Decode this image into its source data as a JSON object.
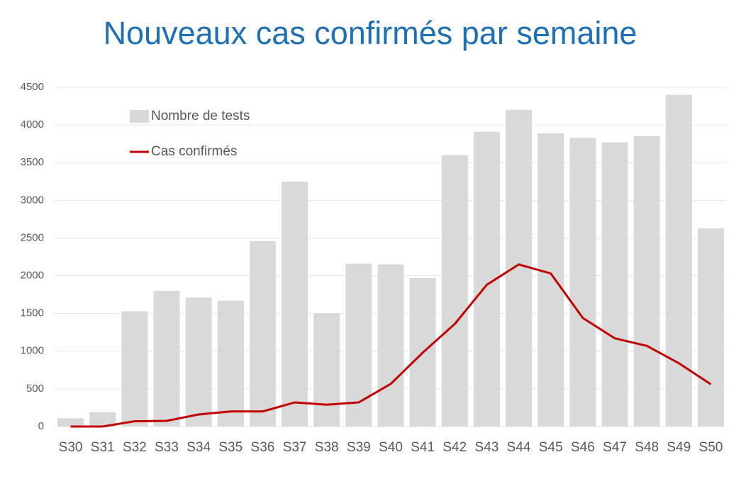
{
  "chart_data": {
    "type": "bar_line",
    "title": "Nouveaux cas confirmés par semaine",
    "categories": [
      "S30",
      "S31",
      "S32",
      "S33",
      "S34",
      "S35",
      "S36",
      "S37",
      "S38",
      "S39",
      "S40",
      "S41",
      "S42",
      "S43",
      "S44",
      "S45",
      "S46",
      "S47",
      "S48",
      "S49",
      "S50"
    ],
    "series": [
      {
        "name": "Nombre de tests",
        "type": "bar",
        "color": "#d9d9d9",
        "values": [
          110,
          190,
          1530,
          1800,
          1710,
          1670,
          2460,
          3250,
          1500,
          2160,
          2150,
          1970,
          3600,
          3910,
          4200,
          3890,
          3830,
          3770,
          3850,
          4400,
          2630
        ]
      },
      {
        "name": "Cas confirmés",
        "type": "line",
        "color": "#c00000",
        "values": [
          0,
          0,
          70,
          75,
          160,
          200,
          200,
          320,
          290,
          320,
          565,
          980,
          1360,
          1880,
          2150,
          2030,
          1440,
          1170,
          1070,
          840,
          560
        ]
      }
    ],
    "ylim": [
      0,
      4500
    ],
    "yticks": [
      0,
      500,
      1000,
      1500,
      2000,
      2500,
      3000,
      3500,
      4000,
      4500
    ],
    "grid": true,
    "legend": "upper-left"
  }
}
